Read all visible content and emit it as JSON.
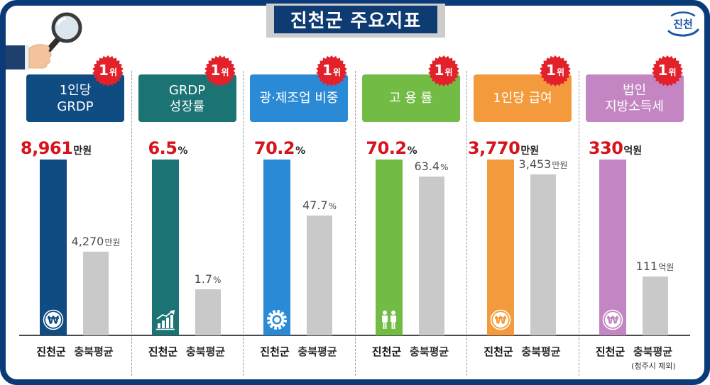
{
  "header": {
    "title": "진천군 주요지표"
  },
  "logo": {
    "text": "진천"
  },
  "colors": {
    "frame": "#0b3a78",
    "title_background": "#0d3b72",
    "rank_badge": "#e3212b",
    "highlight_value": "#d7131c",
    "average_bar": "#c9c9c9"
  },
  "chart_data": [
    {
      "type": "bar",
      "title": "1인당\nGRDP",
      "rank": {
        "number": "1",
        "suffix": "위"
      },
      "categories": [
        "진천군",
        "충북평균"
      ],
      "values": [
        8961,
        4270
      ],
      "value_labels": [
        "8,961",
        "4,270"
      ],
      "unit": "만원",
      "color": "#0f4c82",
      "icon": "won-coin-icon"
    },
    {
      "type": "bar",
      "title": "GRDP\n성장률",
      "rank": {
        "number": "1",
        "suffix": "위"
      },
      "categories": [
        "진천군",
        "충북평균"
      ],
      "values": [
        6.5,
        1.7
      ],
      "value_labels": [
        "6.5",
        "1.7"
      ],
      "unit": "%",
      "color": "#1b7373",
      "icon": "growth-chart-icon"
    },
    {
      "type": "bar",
      "title": "광·제조업 비중",
      "rank": {
        "number": "1",
        "suffix": "위"
      },
      "categories": [
        "진천군",
        "충북평균"
      ],
      "values": [
        70.2,
        47.7
      ],
      "value_labels": [
        "70.2",
        "47.7"
      ],
      "unit": "%",
      "color": "#2a8ad5",
      "icon": "gear-icon"
    },
    {
      "type": "bar",
      "title": "고 용 률",
      "rank": {
        "number": "1",
        "suffix": "위"
      },
      "categories": [
        "진천군",
        "충북평균"
      ],
      "values": [
        70.2,
        63.4
      ],
      "value_labels": [
        "70.2",
        "63.4"
      ],
      "unit": "%",
      "color": "#72bc46",
      "icon": "people-icon"
    },
    {
      "type": "bar",
      "title": "1인당 급여",
      "rank": {
        "number": "1",
        "suffix": "위"
      },
      "categories": [
        "진천군",
        "충북평균"
      ],
      "values": [
        3770,
        3453
      ],
      "value_labels": [
        "3,770",
        "3,453"
      ],
      "unit": "만원",
      "color": "#f39b3c",
      "icon": "won-coin-icon"
    },
    {
      "type": "bar",
      "title": "법인\n지방소득세",
      "rank": {
        "number": "1",
        "suffix": "위"
      },
      "categories": [
        "진천군",
        "충북평균"
      ],
      "values": [
        330,
        111
      ],
      "value_labels": [
        "330",
        "111"
      ],
      "unit": "억원",
      "color": "#c386c3",
      "icon": "won-coin-icon",
      "average_note": "(청주시 제외)"
    }
  ]
}
